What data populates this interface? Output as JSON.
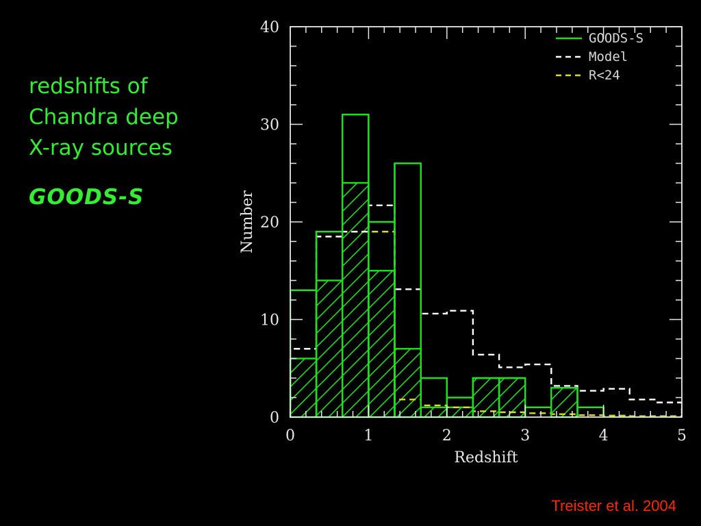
{
  "slide": {
    "headline_lines": [
      "redshifts of",
      "Chandra deep",
      "X-ray sources"
    ],
    "survey_label": "GOODS-S",
    "credit": "Treister et al. 2004"
  },
  "colors": {
    "background": "#000000",
    "headline": "#33ee33",
    "credit": "#ff2a00",
    "goods": "#22dd22",
    "model": "#ffffff",
    "r24": "#dddd22",
    "axes": "#e8e8e8"
  },
  "chart_data": {
    "type": "histogram",
    "xlabel": "Redshift",
    "ylabel": "Number",
    "xlim": [
      0,
      5
    ],
    "ylim": [
      0,
      40
    ],
    "xticks": [
      0,
      1,
      2,
      3,
      4,
      5
    ],
    "yticks": [
      0,
      10,
      20,
      30,
      40
    ],
    "legend_position": "top-right",
    "bin_edges": [
      0,
      0.333,
      0.667,
      1.0,
      1.333,
      1.667,
      2.0,
      2.333,
      2.667,
      3.0,
      3.333,
      3.667,
      4.0,
      4.333,
      4.667,
      5.0
    ],
    "series": [
      {
        "name": "GOODS-S",
        "style": "solid",
        "values": [
          13,
          19,
          31,
          20,
          26,
          4,
          2,
          4,
          4,
          1,
          3,
          1,
          0,
          0,
          0
        ]
      },
      {
        "name": "Model",
        "style": "dashed",
        "values": [
          7,
          18.5,
          19,
          21.7,
          13.1,
          10.6,
          10.9,
          6.4,
          5.1,
          5.4,
          3.2,
          2.7,
          2.9,
          1.8,
          1.5
        ]
      },
      {
        "name": "R<24",
        "style": "dashed",
        "values": [
          7,
          19,
          19,
          19,
          1.8,
          1.2,
          1.0,
          0.6,
          0.5,
          0.4,
          0.3,
          0.2,
          0.15,
          0.1,
          0.1
        ]
      }
    ],
    "hatched_subset": {
      "series": "GOODS-S",
      "values": [
        6,
        14,
        24,
        15,
        7,
        1,
        1,
        4,
        4,
        0,
        3,
        0,
        0,
        0,
        0
      ]
    }
  }
}
